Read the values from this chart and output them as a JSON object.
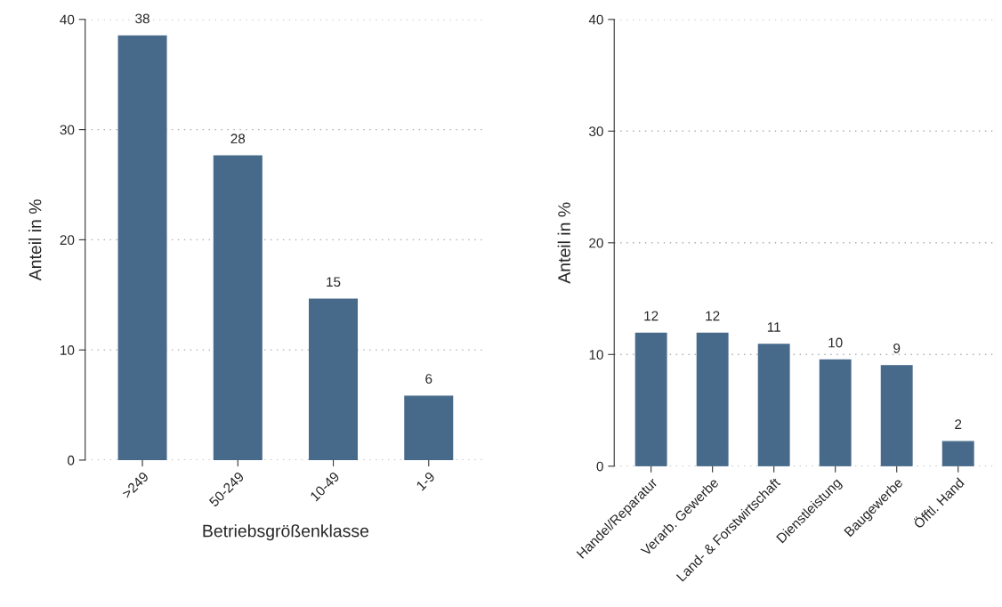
{
  "chart_data": [
    {
      "type": "bar",
      "xlabel": "Betriebsgrößenklasse",
      "ylabel": "Anteil in %",
      "categories": [
        ">249",
        "50-249",
        "10-49",
        "1-9"
      ],
      "values": [
        38.5,
        27.6,
        14.6,
        5.8
      ],
      "value_labels": [
        "38",
        "28",
        "15",
        "6"
      ],
      "color": "#476a8a",
      "ylim": [
        0,
        40
      ],
      "yticks": [
        0,
        10,
        20,
        30,
        40
      ],
      "grid": "y"
    },
    {
      "type": "bar",
      "ylabel": "Anteil in %",
      "categories": [
        "Handel/Reparatur",
        "Verarb. Gewerbe",
        "Land- & Forstwirtschaft",
        "Dienstleistung",
        "Baugewerbe",
        "Öfftl. Hand"
      ],
      "values": [
        11.9,
        11.9,
        10.9,
        9.5,
        9.0,
        2.2
      ],
      "value_labels": [
        "12",
        "12",
        "11",
        "10",
        "9",
        "2"
      ],
      "color": "#476a8a",
      "ylim": [
        0,
        40
      ],
      "yticks": [
        0,
        10,
        20,
        30,
        40
      ],
      "grid": "y"
    }
  ]
}
